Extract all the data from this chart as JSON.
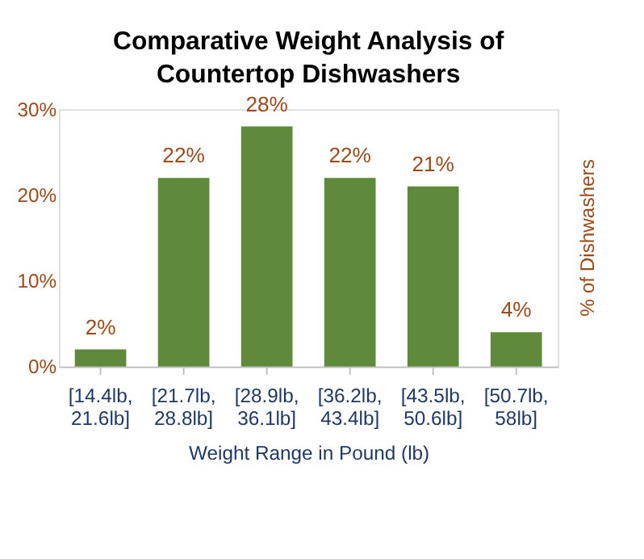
{
  "chart_data": {
    "type": "bar",
    "title": "Comparative Weight Analysis of Countertop Dishwashers",
    "categories": [
      "[14.4lb, 21.6lb]",
      "[21.7lb, 28.8lb]",
      "[28.9lb, 36.1lb]",
      "[36.2lb, 43.4lb]",
      "[43.5lb, 50.6lb]",
      "[50.7lb, 58lb]"
    ],
    "values": [
      2,
      22,
      28,
      22,
      21,
      4
    ],
    "color": "#5f8a3c",
    "xlabel": "Weight Range in Pound (lb)",
    "ylabel": "% of Dishwashers",
    "ylim": [
      0,
      30
    ],
    "yticks": [
      {
        "value": 0,
        "label": "0%"
      },
      {
        "value": 10,
        "label": "10%"
      },
      {
        "value": 20,
        "label": "20%"
      },
      {
        "value": 30,
        "label": "30%"
      }
    ],
    "value_labels": [
      "2%",
      "22%",
      "28%",
      "22%",
      "21%",
      "4%"
    ],
    "grid": false
  }
}
